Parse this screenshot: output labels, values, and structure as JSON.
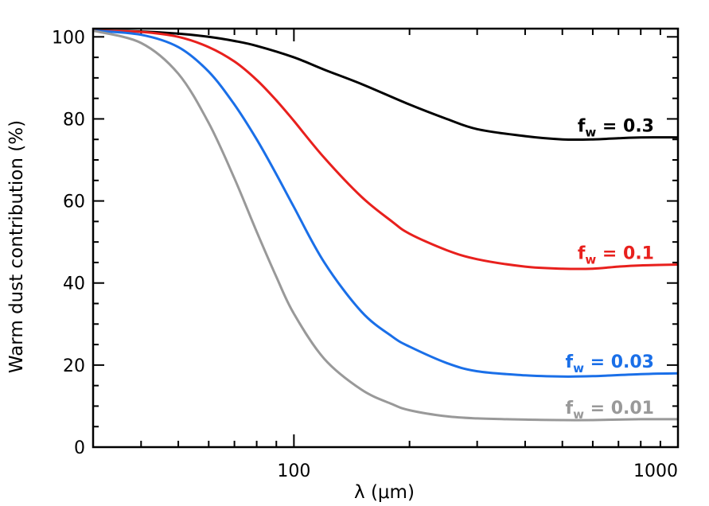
{
  "chart_data": {
    "type": "line",
    "xscale": "log",
    "xlim": [
      30,
      1000
    ],
    "ylim": [
      0,
      102
    ],
    "xlabel": "λ (μm)",
    "ylabel": "Warm dust contribution (%)",
    "xticks": [
      100,
      1000
    ],
    "xtick_labels": [
      "100",
      "1000"
    ],
    "yticks": [
      0,
      20,
      40,
      60,
      80,
      100
    ],
    "ytick_labels": [
      "0",
      "20",
      "40",
      "60",
      "80",
      "100"
    ],
    "grid": false,
    "legend": "inline labels at right end of each curve",
    "series": [
      {
        "name": "f_w = 0.3",
        "label_main": "f",
        "label_sub": "w",
        "label_rest": " = 0.3",
        "color": "#000000",
        "x": [
          30,
          40,
          50,
          60,
          70,
          80,
          100,
          120,
          150,
          200,
          250,
          300,
          400,
          500,
          600,
          700,
          800,
          1000
        ],
        "y": [
          101.5,
          101.3,
          100.8,
          100.0,
          99.0,
          97.8,
          95.0,
          92.0,
          88.5,
          83.5,
          80.0,
          77.5,
          75.8,
          75.0,
          75.0,
          75.3,
          75.5,
          75.5
        ]
      },
      {
        "name": "f_w = 0.1",
        "label_main": "f",
        "label_sub": "w",
        "label_rest": " = 0.1",
        "color": "#e8201d",
        "x": [
          30,
          40,
          50,
          60,
          70,
          80,
          90,
          100,
          120,
          150,
          180,
          200,
          250,
          300,
          400,
          500,
          600,
          700,
          800,
          1000
        ],
        "y": [
          101.5,
          101.2,
          100.0,
          97.5,
          94.0,
          89.5,
          84.5,
          79.5,
          70.5,
          61.0,
          55.0,
          52.0,
          48.0,
          45.8,
          44.0,
          43.5,
          43.5,
          44.0,
          44.3,
          44.5
        ]
      },
      {
        "name": "f_w = 0.03",
        "label_main": "f",
        "label_sub": "w",
        "label_rest": " = 0.03",
        "color": "#1a6fe8",
        "x": [
          30,
          40,
          50,
          60,
          70,
          80,
          90,
          100,
          120,
          150,
          180,
          200,
          250,
          300,
          400,
          500,
          600,
          800,
          1000
        ],
        "y": [
          101.5,
          100.5,
          97.5,
          91.5,
          83.5,
          75.0,
          66.5,
          58.5,
          45.0,
          33.0,
          27.0,
          24.5,
          20.5,
          18.5,
          17.5,
          17.2,
          17.3,
          17.8,
          18.0
        ]
      },
      {
        "name": "f_w = 0.01",
        "label_main": "f",
        "label_sub": "w",
        "label_rest": " = 0.01",
        "color": "#999999",
        "x": [
          30,
          40,
          50,
          60,
          70,
          80,
          90,
          100,
          120,
          150,
          180,
          200,
          250,
          300,
          400,
          500,
          600,
          800,
          1000
        ],
        "y": [
          101.5,
          98.5,
          91.0,
          79.0,
          65.5,
          52.5,
          41.5,
          32.5,
          21.5,
          14.0,
          10.5,
          9.0,
          7.5,
          7.0,
          6.7,
          6.6,
          6.6,
          6.8,
          6.8
        ]
      }
    ]
  }
}
